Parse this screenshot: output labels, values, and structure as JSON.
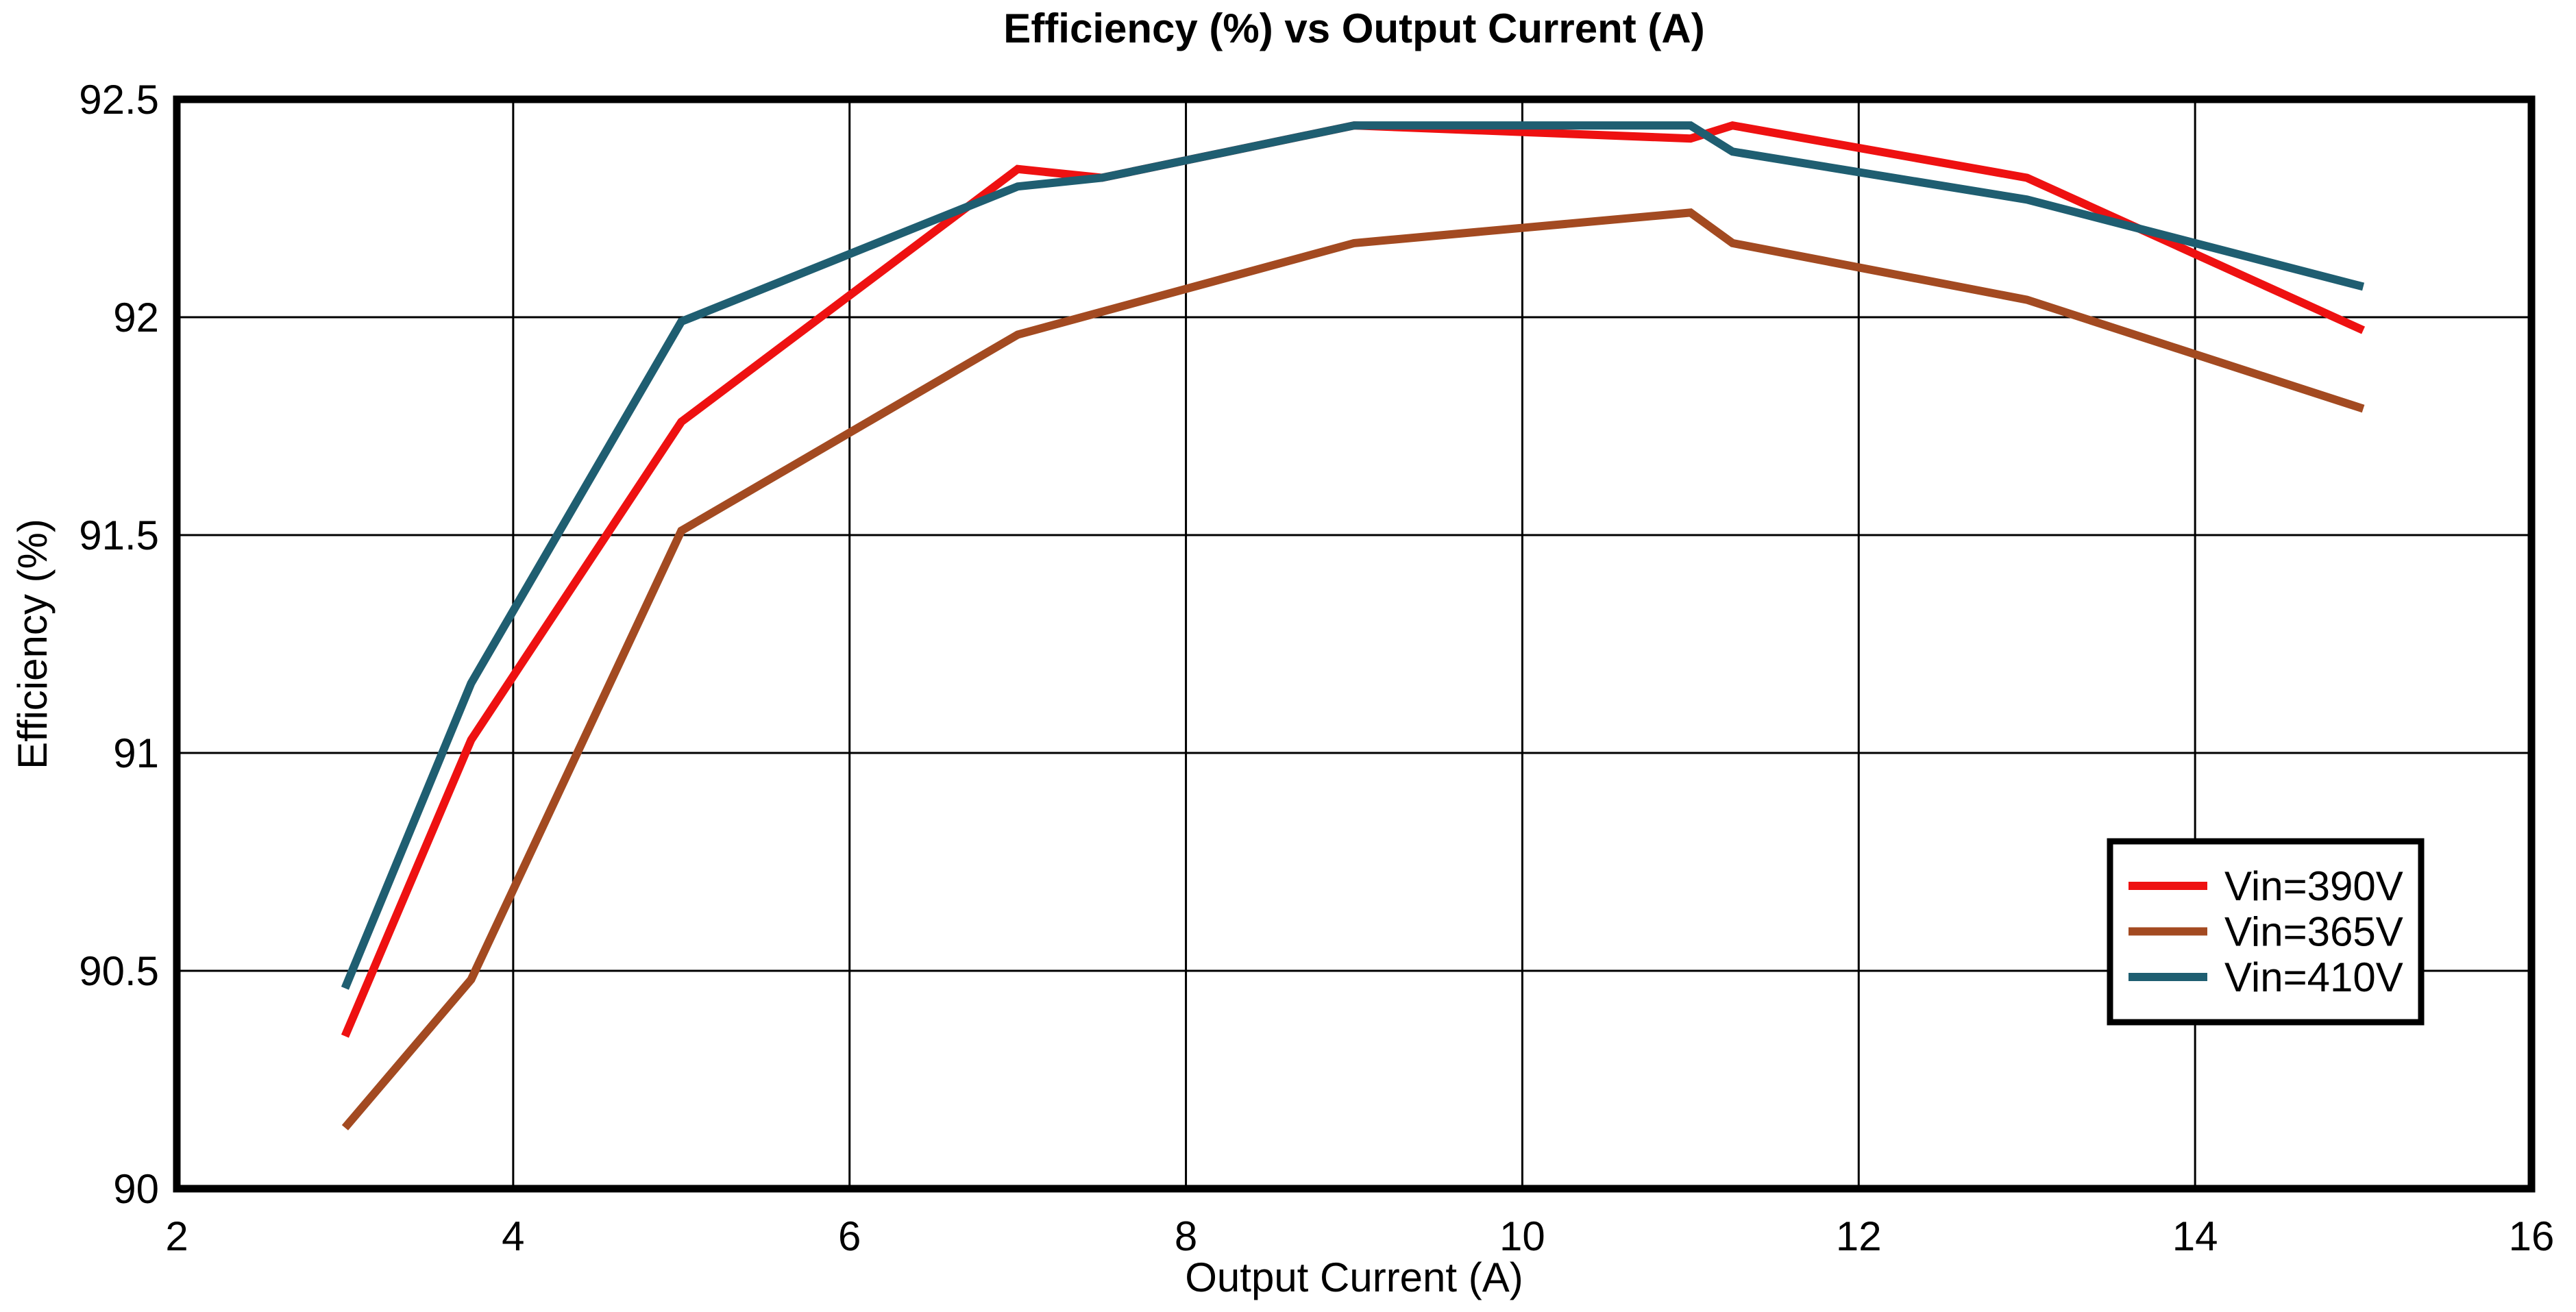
{
  "page": {
    "background": "#ffffff"
  },
  "chart_data": {
    "type": "line",
    "title": "Efficiency (%) vs Output Current (A)",
    "xlabel": "Output Current (A)",
    "ylabel": "Efficiency (%)",
    "xlim": [
      2,
      16
    ],
    "ylim": [
      90,
      92.5
    ],
    "xticks": [
      2,
      4,
      6,
      8,
      10,
      12,
      14,
      16
    ],
    "yticks": [
      90,
      90.5,
      91,
      91.5,
      92,
      92.5
    ],
    "grid": true,
    "grid_color": "#000000",
    "axis_color": "#000000",
    "text_color": "#000000",
    "legend": {
      "position": "lower-right",
      "background": "#ffffff",
      "border_color": "#000000",
      "entries": [
        "Vin=390V",
        "Vin=365V",
        "Vin=410V"
      ]
    },
    "series": [
      {
        "name": "Vin=390V",
        "color": "#ee1111",
        "points": [
          [
            3,
            90.35
          ],
          [
            3.75,
            91.03
          ],
          [
            5,
            91.76
          ],
          [
            7,
            92.34
          ],
          [
            7.5,
            92.32
          ],
          [
            9,
            92.44
          ],
          [
            11,
            92.41
          ],
          [
            11.25,
            92.44
          ],
          [
            13,
            92.32
          ],
          [
            15,
            91.97
          ]
        ]
      },
      {
        "name": "Vin=365V",
        "color": "#a34a21",
        "points": [
          [
            3,
            90.14
          ],
          [
            3.75,
            90.48
          ],
          [
            5,
            91.51
          ],
          [
            7,
            91.96
          ],
          [
            9,
            92.17
          ],
          [
            11,
            92.24
          ],
          [
            11.25,
            92.17
          ],
          [
            13,
            92.04
          ],
          [
            15,
            91.79
          ]
        ]
      },
      {
        "name": "Vin=410V",
        "color": "#1f5e71",
        "points": [
          [
            3,
            90.46
          ],
          [
            3.75,
            91.16
          ],
          [
            5,
            91.99
          ],
          [
            7,
            92.3
          ],
          [
            7.5,
            92.32
          ],
          [
            9,
            92.44
          ],
          [
            11,
            92.44
          ],
          [
            11.25,
            92.38
          ],
          [
            13,
            92.27
          ],
          [
            15,
            92.07
          ]
        ]
      }
    ]
  }
}
